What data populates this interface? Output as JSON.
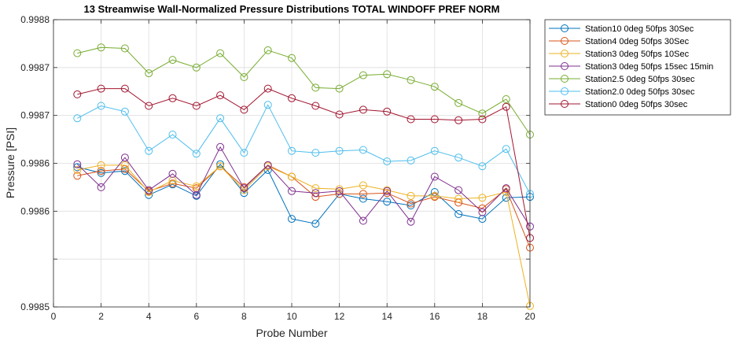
{
  "chart_data": {
    "type": "line",
    "title": "13 Streamwise Wall-Normalized Pressure Distributions TOTAL WINDOFF PREF NORM",
    "xlabel": "Probe Number",
    "ylabel": "Pressure [PSI]",
    "xlim": [
      0,
      20
    ],
    "ylim": [
      0.9985,
      0.9988
    ],
    "xticks": [
      0,
      2,
      4,
      6,
      8,
      10,
      12,
      14,
      16,
      18,
      20
    ],
    "yticks": [
      {
        "value": 0.9985,
        "label": "0.9985"
      },
      {
        "value": 0.9986,
        "label": "0.9986"
      },
      {
        "value": 0.99865,
        "label": "0.9986"
      },
      {
        "value": 0.9987,
        "label": "0.9987"
      },
      {
        "value": 0.99875,
        "label": "0.9987"
      },
      {
        "value": 0.9988,
        "label": "0.9988"
      }
    ],
    "y_minor_grid": [
      0.99855
    ],
    "grid": true,
    "legend_position": "outside-top-right",
    "x": [
      1,
      2,
      3,
      4,
      5,
      6,
      7,
      8,
      9,
      10,
      11,
      12,
      13,
      14,
      15,
      16,
      17,
      18,
      19,
      20
    ],
    "series": [
      {
        "name": "Station10 0deg 50fps 30Sec",
        "color": "#0072bd",
        "values": [
          0.998646,
          0.99864,
          0.998642,
          0.998617,
          0.998628,
          0.998616,
          0.998649,
          0.998619,
          0.998643,
          0.998592,
          0.998587,
          0.998618,
          0.998613,
          0.99861,
          0.998606,
          0.99862,
          0.998597,
          0.998592,
          0.998614,
          0.998615
        ]
      },
      {
        "name": "Station4 0deg 50fps 30Sec",
        "color": "#d95319",
        "values": [
          0.998637,
          0.998642,
          0.998644,
          0.998621,
          0.998629,
          0.998624,
          0.998647,
          0.998625,
          0.998648,
          0.998636,
          0.998615,
          0.998618,
          0.998618,
          0.998619,
          0.998608,
          0.998615,
          0.998609,
          0.998603,
          0.998623,
          0.998562
        ]
      },
      {
        "name": "Station3 0deg 50fps 10Sec",
        "color": "#edb120",
        "values": [
          0.998643,
          0.998648,
          0.998648,
          0.99862,
          0.998632,
          0.998626,
          0.998647,
          0.998622,
          0.998647,
          0.998636,
          0.998624,
          0.998623,
          0.998627,
          0.998622,
          0.998616,
          0.998616,
          0.998613,
          0.998614,
          0.99862,
          0.998501
        ]
      },
      {
        "name": "Station3 0deg 50fps 15sec 15min",
        "color": "#7e2f8e",
        "values": [
          0.998649,
          0.998625,
          0.998656,
          0.998622,
          0.998639,
          0.998617,
          0.998667,
          0.998624,
          0.998648,
          0.998621,
          0.998619,
          0.998621,
          0.99859,
          0.998621,
          0.998589,
          0.998636,
          0.998622,
          0.998599,
          0.998624,
          0.998584
        ]
      },
      {
        "name": "Station2.5 0deg 50fps 30sec",
        "color": "#77ac30",
        "values": [
          0.998765,
          0.998771,
          0.99877,
          0.998744,
          0.998758,
          0.99875,
          0.998765,
          0.99874,
          0.998768,
          0.99876,
          0.998729,
          0.998728,
          0.998742,
          0.998743,
          0.998737,
          0.99873,
          0.998713,
          0.998702,
          0.998717,
          0.99868
        ]
      },
      {
        "name": "Station2.0 0deg 50fps 30sec",
        "color": "#4dbeee",
        "values": [
          0.998697,
          0.99871,
          0.998704,
          0.998663,
          0.99868,
          0.99866,
          0.998697,
          0.998661,
          0.998711,
          0.998663,
          0.998661,
          0.998663,
          0.998664,
          0.998652,
          0.998653,
          0.998663,
          0.998656,
          0.998647,
          0.998665,
          0.998618
        ]
      },
      {
        "name": "Station0 0deg 50fps 30sec",
        "color": "#a2142f",
        "values": [
          0.998722,
          0.998728,
          0.998728,
          0.99871,
          0.998718,
          0.99871,
          0.998721,
          0.998706,
          0.998728,
          0.998718,
          0.99871,
          0.998701,
          0.998706,
          0.998704,
          0.998696,
          0.998696,
          0.998695,
          0.998696,
          0.998709,
          0.998572
        ]
      }
    ]
  }
}
